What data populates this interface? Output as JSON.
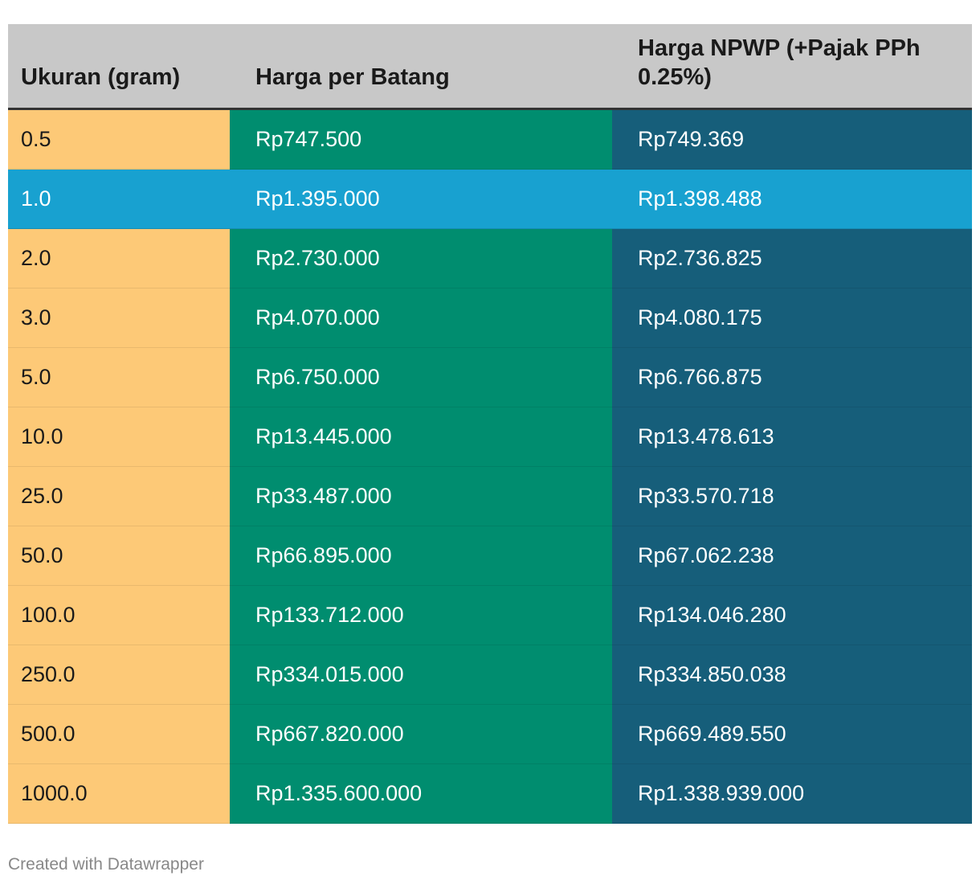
{
  "colors": {
    "header_bg": "#c8c8c8",
    "size_col": "#fdc977",
    "price_col": "#008d6f",
    "npwp_col": "#165e7a",
    "highlight_row": "#18a1d0"
  },
  "chart_data": {
    "type": "table",
    "columns": [
      "Ukuran (gram)",
      "Harga per Batang",
      "Harga NPWP (+Pajak PPh 0.25%)"
    ],
    "highlighted_row": "1.0",
    "rows": [
      {
        "size": "0.5",
        "price": "Rp747.500",
        "npwp": "Rp749.369"
      },
      {
        "size": "1.0",
        "price": "Rp1.395.000",
        "npwp": "Rp1.398.488"
      },
      {
        "size": "2.0",
        "price": "Rp2.730.000",
        "npwp": "Rp2.736.825"
      },
      {
        "size": "3.0",
        "price": "Rp4.070.000",
        "npwp": "Rp4.080.175"
      },
      {
        "size": "5.0",
        "price": "Rp6.750.000",
        "npwp": "Rp6.766.875"
      },
      {
        "size": "10.0",
        "price": "Rp13.445.000",
        "npwp": "Rp13.478.613"
      },
      {
        "size": "25.0",
        "price": "Rp33.487.000",
        "npwp": "Rp33.570.718"
      },
      {
        "size": "50.0",
        "price": "Rp66.895.000",
        "npwp": "Rp67.062.238"
      },
      {
        "size": "100.0",
        "price": "Rp133.712.000",
        "npwp": "Rp134.046.280"
      },
      {
        "size": "250.0",
        "price": "Rp334.015.000",
        "npwp": "Rp334.850.038"
      },
      {
        "size": "500.0",
        "price": "Rp667.820.000",
        "npwp": "Rp669.489.550"
      },
      {
        "size": "1000.0",
        "price": "Rp1.335.600.000",
        "npwp": "Rp1.338.939.000"
      }
    ]
  },
  "footer": {
    "credit": "Created with Datawrapper"
  }
}
